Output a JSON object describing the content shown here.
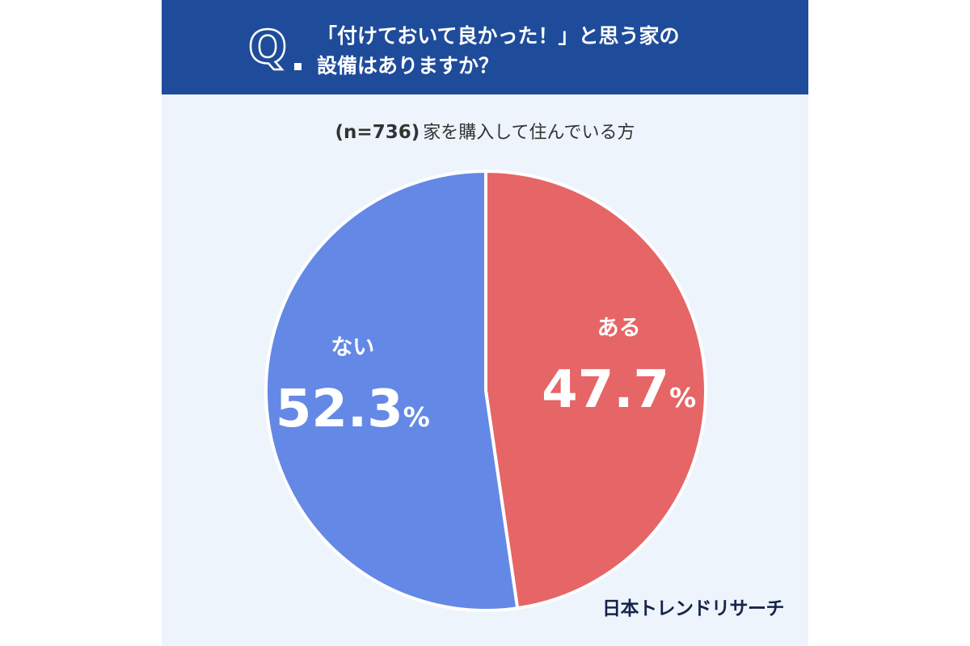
{
  "header": {
    "q_letter": "Q",
    "title_line1": "「付けておいて良かった！」と思う家の",
    "title_line2": "設備はありますか？"
  },
  "subtitle": {
    "n_label": "(n=736)",
    "description": "家を購入して住んでいる方"
  },
  "brand": "日本トレンドリサーチ",
  "chart_data": {
    "type": "pie",
    "title": "「付けておいて良かった！」と思う家の設備はありますか？",
    "subtitle": "(n=736) 家を購入して住んでいる方",
    "slices": [
      {
        "label": "ある",
        "value": 47.7,
        "display": "47.7",
        "unit": "%",
        "color": "#e66566"
      },
      {
        "label": "ない",
        "value": 52.3,
        "display": "52.3",
        "unit": "%",
        "color": "#6488e5"
      }
    ],
    "start_angle": "12 o'clock",
    "direction": "clockwise",
    "separator_color": "#ffffff"
  }
}
